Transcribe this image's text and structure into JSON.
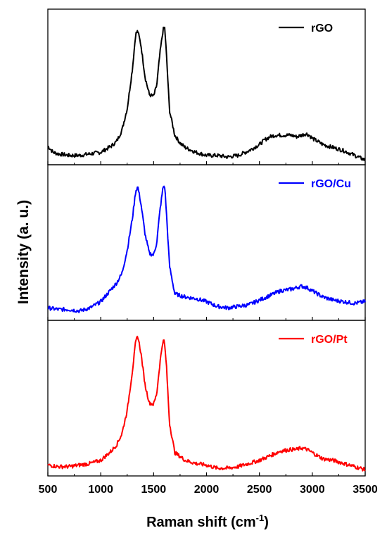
{
  "chart_data": {
    "type": "line",
    "title": "",
    "xlabel": "Raman shift (cm",
    "xlabel_sup": "-1",
    "xlabel_close": ")",
    "ylabel": "Intensity (a. u.)",
    "xlim": [
      500,
      3500
    ],
    "xticks": [
      "500",
      "1000",
      "1500",
      "2000",
      "2500",
      "3000",
      "3500"
    ],
    "yticks_shown": false,
    "grid": false,
    "legend_position": "top-right of each panel",
    "layout": "three vertically stacked panels sharing the x axis",
    "panels": [
      {
        "name": "rGO",
        "color": "#000000",
        "ylim": [
          0,
          1
        ],
        "x": [
          500,
          550,
          600,
          700,
          800,
          900,
          1000,
          1050,
          1100,
          1150,
          1200,
          1250,
          1300,
          1330,
          1350,
          1380,
          1420,
          1460,
          1500,
          1530,
          1560,
          1590,
          1605,
          1620,
          1650,
          1700,
          1750,
          1800,
          1900,
          2000,
          2100,
          2200,
          2300,
          2400,
          2500,
          2550,
          2600,
          2650,
          2700,
          2750,
          2800,
          2850,
          2900,
          2940,
          2970,
          3000,
          3050,
          3100,
          3150,
          3200,
          3300,
          3400,
          3500
        ],
        "y": [
          0.12,
          0.08,
          0.07,
          0.06,
          0.06,
          0.07,
          0.08,
          0.1,
          0.12,
          0.15,
          0.22,
          0.36,
          0.62,
          0.84,
          0.86,
          0.77,
          0.56,
          0.45,
          0.44,
          0.51,
          0.72,
          0.87,
          0.88,
          0.72,
          0.35,
          0.19,
          0.14,
          0.11,
          0.08,
          0.06,
          0.06,
          0.05,
          0.06,
          0.09,
          0.13,
          0.16,
          0.18,
          0.19,
          0.19,
          0.19,
          0.19,
          0.18,
          0.19,
          0.2,
          0.19,
          0.17,
          0.15,
          0.13,
          0.12,
          0.11,
          0.09,
          0.06,
          0.03
        ]
      },
      {
        "name": "rGO/Cu",
        "color": "#0000ff",
        "ylim": [
          0,
          1
        ],
        "x": [
          500,
          600,
          700,
          800,
          900,
          1000,
          1050,
          1100,
          1150,
          1200,
          1250,
          1300,
          1330,
          1350,
          1380,
          1420,
          1460,
          1500,
          1530,
          1560,
          1590,
          1605,
          1620,
          1650,
          1700,
          1800,
          1900,
          2000,
          2100,
          2200,
          2300,
          2400,
          2500,
          2600,
          2700,
          2800,
          2850,
          2900,
          2950,
          3000,
          3050,
          3100,
          3200,
          3300,
          3400,
          3500
        ],
        "y": [
          0.08,
          0.07,
          0.07,
          0.06,
          0.08,
          0.12,
          0.16,
          0.2,
          0.24,
          0.3,
          0.45,
          0.66,
          0.83,
          0.86,
          0.75,
          0.55,
          0.43,
          0.42,
          0.5,
          0.71,
          0.86,
          0.86,
          0.7,
          0.35,
          0.17,
          0.15,
          0.14,
          0.12,
          0.09,
          0.08,
          0.09,
          0.1,
          0.13,
          0.16,
          0.19,
          0.2,
          0.21,
          0.22,
          0.21,
          0.19,
          0.17,
          0.15,
          0.13,
          0.12,
          0.11,
          0.12
        ]
      },
      {
        "name": "rGO/Pt",
        "color": "#ff0000",
        "ylim": [
          0,
          1
        ],
        "x": [
          500,
          600,
          700,
          800,
          900,
          1000,
          1050,
          1100,
          1150,
          1200,
          1250,
          1300,
          1330,
          1350,
          1380,
          1420,
          1460,
          1500,
          1530,
          1560,
          1585,
          1600,
          1620,
          1650,
          1700,
          1800,
          1900,
          2000,
          2100,
          2200,
          2300,
          2400,
          2500,
          2600,
          2700,
          2800,
          2850,
          2900,
          2950,
          3000,
          3050,
          3100,
          3200,
          3300,
          3400,
          3500
        ],
        "y": [
          0.07,
          0.06,
          0.06,
          0.07,
          0.08,
          0.1,
          0.13,
          0.16,
          0.2,
          0.27,
          0.42,
          0.68,
          0.86,
          0.9,
          0.79,
          0.58,
          0.47,
          0.46,
          0.53,
          0.73,
          0.86,
          0.87,
          0.72,
          0.34,
          0.15,
          0.1,
          0.08,
          0.07,
          0.05,
          0.05,
          0.06,
          0.08,
          0.1,
          0.13,
          0.16,
          0.17,
          0.17,
          0.18,
          0.17,
          0.15,
          0.13,
          0.11,
          0.1,
          0.08,
          0.06,
          0.04
        ]
      }
    ]
  }
}
